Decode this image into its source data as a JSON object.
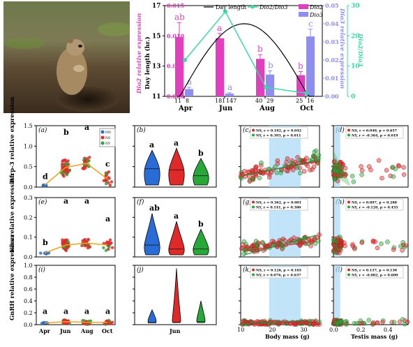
{
  "colors": {
    "dio2": "#e23fbf",
    "dio3": "#8e8ef0",
    "ratio": "#3bd9a4",
    "daylen": "#000000",
    "nn": "#2a6cd6",
    "ns": "#e02a2a",
    "ny": "#28a838",
    "trend": "#f0a21c",
    "shade": "#a8d8f5"
  },
  "photo": {
    "subject": "ground squirrel on soil mound",
    "icon": "squirrel-photo"
  },
  "top_chart": {
    "legend": {
      "day": "Day length",
      "ratio": "Dio2/Dio3",
      "dio2": "Dio2",
      "dio3": "Dio3"
    },
    "ylabel_left": "Day length (hr.)",
    "ylabel_dio2": "Dio2 relative expression",
    "ylabel_dio3": "Dio3 relative expression",
    "ylabel_ratio": "Dio2/Dio3",
    "months": [
      "Apr",
      "Jun",
      "Aug",
      "Oct"
    ],
    "counts": [
      [
        "11",
        "8"
      ],
      [
        "181",
        "147"
      ],
      [
        "40",
        "29"
      ],
      [
        "25",
        "16"
      ]
    ],
    "day_ticks": [
      "11",
      "13",
      "15",
      "17"
    ],
    "dio2_ticks": [
      "0.000",
      "0.005",
      "0.010",
      "0.015"
    ],
    "dio3_ticks": [
      "0.00",
      "0.01",
      "0.02",
      "0.03",
      "0.04",
      "0.05"
    ],
    "ratio_ticks": [
      "0",
      "10",
      "20",
      "30"
    ],
    "dio2_letters": [
      "ab",
      "a",
      "b",
      "b"
    ],
    "dio3_letters": [
      "a",
      "a",
      "b",
      "c"
    ]
  },
  "grid": {
    "row_labels": [
      "Rfrp-3 relative expression",
      "Kiss relative expression",
      "GnRH relative expression"
    ],
    "panel_letters": [
      [
        "(a)",
        "(b)",
        "(c)",
        "(d)"
      ],
      [
        "(e)",
        "(f)",
        "(g)",
        "(h)"
      ],
      [
        "(i)",
        "(j)",
        "(k)",
        "(l)"
      ]
    ],
    "row_ticks": [
      [
        "0.0",
        "0.5",
        "1.0",
        "1.5"
      ],
      [
        "0.0",
        "0.1",
        "0.2",
        "0.3"
      ],
      [
        "0.0",
        "0.2",
        "0.4",
        "0.6",
        "0.8",
        "1.0"
      ]
    ],
    "months": [
      "Apr",
      "Jun",
      "Aug",
      "Oct"
    ],
    "violin_xlabel": "Jun",
    "body_xlabel": "Body mass (g)",
    "testis_xlabel": "Testis mass (g)",
    "body_ticks": [
      "10",
      "20",
      "30"
    ],
    "testis_ticks": [
      "0.0",
      "0.2",
      "0.4"
    ],
    "legend_nn": "NN",
    "legend_ns": "NS",
    "legend_ny": "NY",
    "month_letters": [
      [
        "d",
        "b",
        "a",
        "c"
      ],
      [
        "b",
        "a",
        "a",
        "a"
      ],
      [
        "a",
        "a",
        "a",
        "a"
      ]
    ],
    "violin_letters": [
      [
        "a",
        "a",
        "b"
      ],
      [
        "ab",
        "a",
        "b"
      ],
      [
        "",
        "",
        ""
      ]
    ],
    "stats": {
      "c": [
        "NS, r = 0.182, p = 0.042",
        "NY, r = 0.393, p = 0.011"
      ],
      "d": [
        "NS, r = 0.040, p = 0.657",
        "NY, r = -0.364, p = 0.019"
      ],
      "g": [
        "NS, r = 0.362, p = 0.001",
        "NY, r = 0.141, p = 0.380"
      ],
      "h": [
        "NS, r = 0.097, p = 0.288",
        "NY, r = -0.120, p = 0.455"
      ],
      "k": [
        "NS, r = 0.126, p = 0.165",
        "NY, r = 0.076, p = 0.637"
      ],
      "l": [
        "NS, r = 0.137, p = 0.130",
        "NY, r = -0.082, p = 0.609"
      ]
    }
  },
  "chart_data": [
    {
      "type": "bar",
      "title": "",
      "months": [
        "Apr",
        "Jun",
        "Aug",
        "Oct"
      ],
      "series": [
        {
          "name": "Dio2",
          "values": [
            0.0098,
            0.0096,
            0.0062,
            0.0035
          ],
          "errors": [
            0.0024,
            0.0008,
            0.0007,
            0.0006
          ]
        },
        {
          "name": "Dio3",
          "values": [
            0.004,
            0.0015,
            0.012,
            0.033
          ],
          "errors": [
            0.001,
            0.0005,
            0.002,
            0.004
          ]
        },
        {
          "name": "Day length",
          "x": [
            0,
            1,
            2,
            3
          ],
          "values": [
            11.3,
            15.6,
            15.0,
            11.0
          ]
        },
        {
          "name": "Dio2/Dio3",
          "values": [
            12,
            28,
            3,
            1
          ]
        }
      ],
      "ylim_day": [
        11,
        17
      ],
      "ylim_dio2": [
        0,
        0.015
      ],
      "ylim_dio3": [
        0,
        0.05
      ],
      "ylim_ratio": [
        0,
        30
      ]
    },
    {
      "type": "scatter",
      "panels": "a,e,i: expression by month",
      "means": {
        "rfrp3": [
          0.05,
          0.48,
          0.58,
          0.2
        ],
        "kiss": [
          0.02,
          0.06,
          0.07,
          0.06
        ],
        "gnrh": [
          0.03,
          0.05,
          0.04,
          0.04
        ]
      }
    },
    {
      "type": "violin",
      "panels": "b,f,j: NN/NS/NY in Jun",
      "medians": {
        "rfrp3": [
          0.45,
          0.42,
          0.28
        ],
        "kiss": [
          0.06,
          0.04,
          0.04
        ],
        "gnrh": [
          0.03,
          0.04,
          0.05
        ]
      }
    },
    {
      "type": "scatter",
      "panels": "c,g,k body mass; d,h,l testis mass"
    }
  ]
}
